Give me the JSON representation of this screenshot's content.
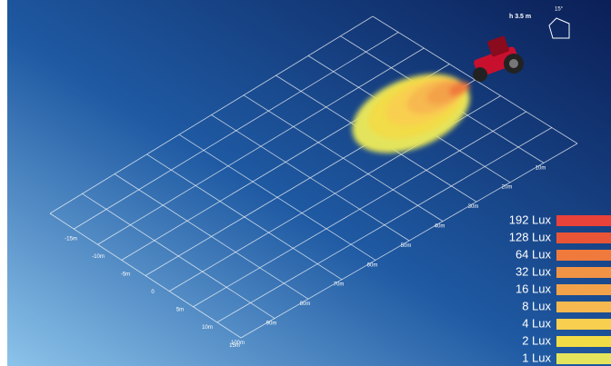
{
  "indicator": "h 3.5 m",
  "angle": "15°",
  "grid_labels": {
    "left": [
      "-15m",
      "-10m",
      "-5m",
      "0",
      "5m",
      "10m",
      "15m"
    ],
    "right": [
      "10m",
      "20m",
      "30m",
      "40m",
      "50m",
      "60m",
      "70m",
      "80m",
      "90m",
      "100m"
    ]
  },
  "legend": [
    {
      "label": "192 Lux",
      "color": "#e8423a"
    },
    {
      "label": "128 Lux",
      "color": "#ea5536"
    },
    {
      "label": "64 Lux",
      "color": "#ef7a3c"
    },
    {
      "label": "32 Lux",
      "color": "#f19345"
    },
    {
      "label": "16 Lux",
      "color": "#f4a24a"
    },
    {
      "label": "8 Lux",
      "color": "#f7b84f"
    },
    {
      "label": "4 Lux",
      "color": "#f9cf50"
    },
    {
      "label": "2 Lux",
      "color": "#f2dc46"
    },
    {
      "label": "1 Lux",
      "color": "#e4e45c"
    }
  ]
}
